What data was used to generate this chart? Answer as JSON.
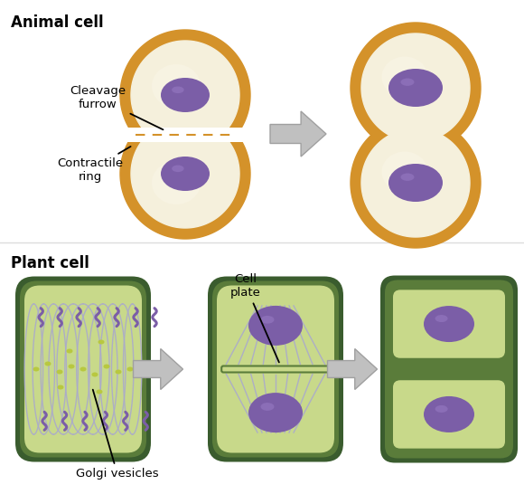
{
  "title_animal": "Animal cell",
  "title_plant": "Plant cell",
  "label_cleavage": "Cleavage\nfurrow",
  "label_contractile": "Contractile\nring",
  "label_cell_plate": "Cell\nplate",
  "label_golgi": "Golgi vesicles",
  "bg_color": "#ffffff",
  "animal_outer_color": "#d4922a",
  "animal_inner_color": "#f5f0dc",
  "animal_highlight": "#faf6e8",
  "nucleus_color": "#7b5ea7",
  "plant_outer_dark": "#3a5c2e",
  "plant_outer_mid": "#5a7c3a",
  "plant_inner_color": "#c8d98a",
  "spindle_color": "#aaaacc",
  "chromosome_color": "#7b5ea7",
  "vesicle_color": "#b8c840",
  "arrow_face": "#c0c0c0",
  "arrow_edge": "#a0a0a0",
  "line_color": "#000000",
  "divider_color": "#dddddd"
}
